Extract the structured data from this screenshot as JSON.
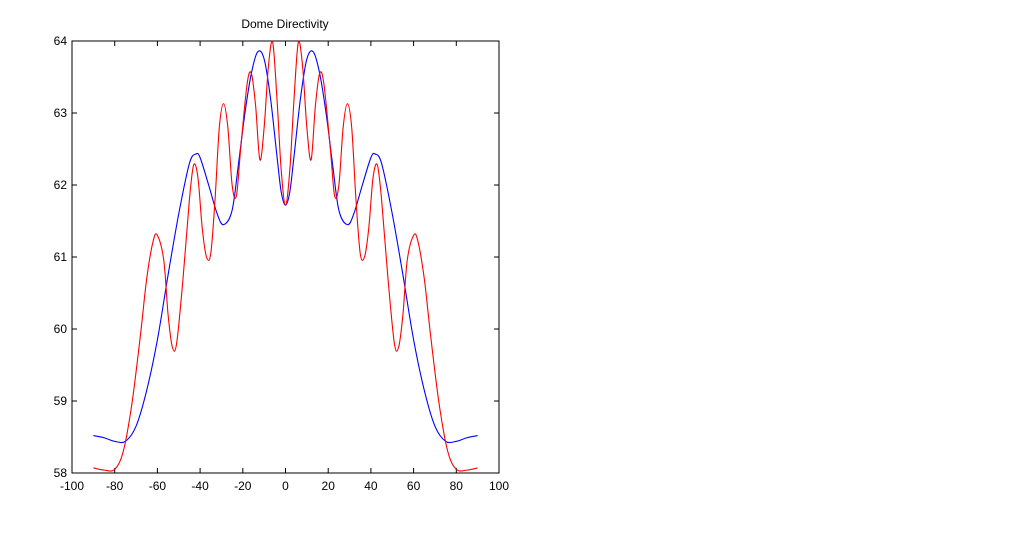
{
  "chart_data": {
    "type": "line",
    "title": "Dome Directivity",
    "xlabel": "",
    "ylabel": "",
    "xlim": [
      -100,
      100
    ],
    "ylim": [
      58,
      64
    ],
    "xticks": [
      "-100",
      "-80",
      "-60",
      "-40",
      "-20",
      "0",
      "20",
      "40",
      "60",
      "80",
      "100"
    ],
    "yticks": [
      "58",
      "59",
      "60",
      "61",
      "62",
      "63",
      "64"
    ],
    "grid": false,
    "legend": "none",
    "series": [
      {
        "color": "#0000ff",
        "points": [
          [
            -90,
            58.52
          ],
          [
            -85,
            58.49
          ],
          [
            -80,
            58.44
          ],
          [
            -75,
            58.44
          ],
          [
            -70,
            58.65
          ],
          [
            -65,
            59.15
          ],
          [
            -60,
            59.85
          ],
          [
            -55,
            60.75
          ],
          [
            -50,
            61.6
          ],
          [
            -45,
            62.3
          ],
          [
            -42,
            62.43
          ],
          [
            -40,
            62.38
          ],
          [
            -36,
            62.0
          ],
          [
            -32,
            61.6
          ],
          [
            -29,
            61.45
          ],
          [
            -25,
            61.65
          ],
          [
            -22,
            62.3
          ],
          [
            -19,
            63.0
          ],
          [
            -16,
            63.55
          ],
          [
            -13,
            63.85
          ],
          [
            -10,
            63.75
          ],
          [
            -7,
            63.2
          ],
          [
            -4,
            62.4
          ],
          [
            -2,
            61.9
          ],
          [
            0,
            61.72
          ],
          [
            2,
            61.9
          ],
          [
            4,
            62.4
          ],
          [
            7,
            63.2
          ],
          [
            10,
            63.75
          ],
          [
            13,
            63.85
          ],
          [
            16,
            63.55
          ],
          [
            19,
            63.0
          ],
          [
            22,
            62.3
          ],
          [
            25,
            61.65
          ],
          [
            29,
            61.45
          ],
          [
            32,
            61.6
          ],
          [
            36,
            62.0
          ],
          [
            40,
            62.38
          ],
          [
            42,
            62.43
          ],
          [
            45,
            62.3
          ],
          [
            50,
            61.6
          ],
          [
            55,
            60.75
          ],
          [
            60,
            59.85
          ],
          [
            65,
            59.15
          ],
          [
            70,
            58.65
          ],
          [
            75,
            58.44
          ],
          [
            80,
            58.44
          ],
          [
            85,
            58.49
          ],
          [
            90,
            58.52
          ]
        ]
      },
      {
        "color": "#ff0000",
        "points": [
          [
            -90,
            58.07
          ],
          [
            -85,
            58.04
          ],
          [
            -80,
            58.05
          ],
          [
            -76,
            58.3
          ],
          [
            -72,
            58.95
          ],
          [
            -68,
            59.9
          ],
          [
            -65,
            60.7
          ],
          [
            -62,
            61.22
          ],
          [
            -60,
            61.3
          ],
          [
            -57,
            60.95
          ],
          [
            -55,
            60.2
          ],
          [
            -53,
            59.75
          ],
          [
            -51,
            59.8
          ],
          [
            -48,
            60.7
          ],
          [
            -45,
            61.8
          ],
          [
            -43,
            62.28
          ],
          [
            -41,
            62.1
          ],
          [
            -39,
            61.4
          ],
          [
            -37,
            61.0
          ],
          [
            -35,
            61.05
          ],
          [
            -33,
            61.8
          ],
          [
            -31,
            62.8
          ],
          [
            -29,
            63.13
          ],
          [
            -27,
            62.8
          ],
          [
            -25,
            62.0
          ],
          [
            -23,
            61.85
          ],
          [
            -21,
            62.5
          ],
          [
            -18,
            63.4
          ],
          [
            -16,
            63.55
          ],
          [
            -14,
            63.1
          ],
          [
            -12,
            62.35
          ],
          [
            -10,
            62.8
          ],
          [
            -8,
            63.65
          ],
          [
            -6,
            63.98
          ],
          [
            -4,
            63.2
          ],
          [
            -2,
            62.2
          ],
          [
            0,
            61.72
          ],
          [
            2,
            62.2
          ],
          [
            4,
            63.2
          ],
          [
            6,
            63.98
          ],
          [
            8,
            63.65
          ],
          [
            10,
            62.8
          ],
          [
            12,
            62.35
          ],
          [
            14,
            63.1
          ],
          [
            16,
            63.55
          ],
          [
            18,
            63.4
          ],
          [
            21,
            62.5
          ],
          [
            23,
            61.85
          ],
          [
            25,
            62.0
          ],
          [
            27,
            62.8
          ],
          [
            29,
            63.13
          ],
          [
            31,
            62.8
          ],
          [
            33,
            61.8
          ],
          [
            35,
            61.05
          ],
          [
            37,
            61.0
          ],
          [
            39,
            61.4
          ],
          [
            41,
            62.1
          ],
          [
            43,
            62.28
          ],
          [
            45,
            61.8
          ],
          [
            48,
            60.7
          ],
          [
            51,
            59.8
          ],
          [
            53,
            59.75
          ],
          [
            55,
            60.2
          ],
          [
            57,
            60.95
          ],
          [
            60,
            61.3
          ],
          [
            62,
            61.22
          ],
          [
            65,
            60.7
          ],
          [
            68,
            59.9
          ],
          [
            72,
            58.95
          ],
          [
            76,
            58.3
          ],
          [
            80,
            58.05
          ],
          [
            85,
            58.04
          ],
          [
            90,
            58.07
          ]
        ]
      }
    ]
  }
}
